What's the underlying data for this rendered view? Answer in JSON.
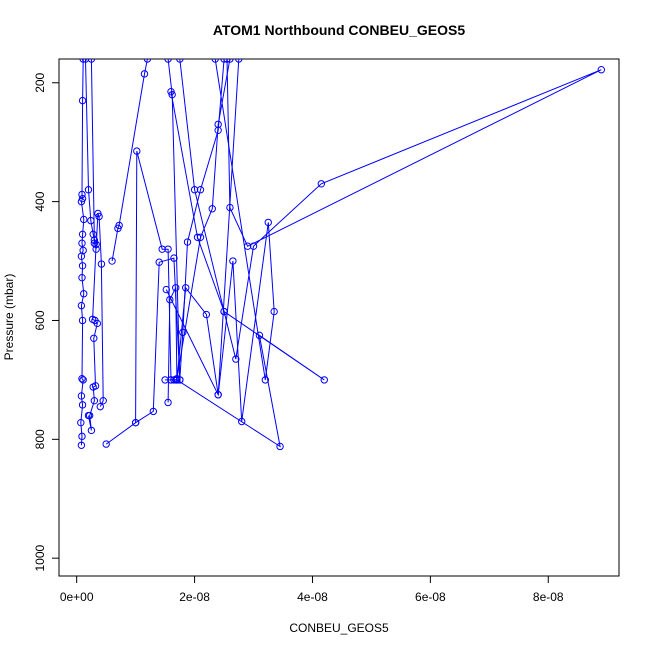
{
  "chart_data": {
    "type": "line",
    "title": "ATOM1 Northbound CONBEU_GEOS5",
    "xlabel": "CONBEU_GEOS5",
    "ylabel": "Pressure (mbar)",
    "x_ticks": [
      {
        "value": 0,
        "label": "0e+00"
      },
      {
        "value": 2e-08,
        "label": "2e-08"
      },
      {
        "value": 4e-08,
        "label": "4e-08"
      },
      {
        "value": 6e-08,
        "label": "6e-08"
      },
      {
        "value": 8e-08,
        "label": "8e-08"
      }
    ],
    "y_ticks": [
      {
        "value": 200,
        "label": "200"
      },
      {
        "value": 400,
        "label": "400"
      },
      {
        "value": 600,
        "label": "600"
      },
      {
        "value": 800,
        "label": "800"
      },
      {
        "value": 1000,
        "label": "1000"
      }
    ],
    "xlim": [
      -3e-09,
      9.2e-08
    ],
    "ylim": [
      1030,
      160
    ],
    "y_inverted": true,
    "color": "#0000ff",
    "marker": "open-circle",
    "grid": false,
    "legend": "none",
    "series": [
      {
        "x": [
          8e-10,
          9e-10,
          7e-10,
          1e-09,
          8e-10,
          1.1e-09,
          9e-10,
          1e-09,
          8e-10,
          1.2e-09,
          9e-10,
          1e-09,
          8e-10,
          1.1e-09,
          9e-10,
          1e-09,
          1.2e-09,
          8e-10,
          1e-09,
          9e-10,
          1e-09,
          1.1e-09
        ],
        "y": [
          810,
          795,
          772,
          742,
          727,
          700,
          698,
          600,
          575,
          555,
          528,
          508,
          492,
          482,
          470,
          455,
          430,
          400,
          395,
          388,
          230,
          160
        ]
      },
      {
        "x": [
          2e-09,
          2.5e-09,
          2.2e-09,
          3e-09,
          2.8e-09,
          3.2e-09,
          2.9e-09,
          3.5e-09,
          3.1e-09,
          2.7e-09,
          3.3e-09,
          3e-09,
          2.8e-09,
          2.4e-09,
          2e-09,
          1.5e-09
        ],
        "y": [
          760,
          785,
          760,
          735,
          712,
          710,
          630,
          605,
          600,
          598,
          472,
          465,
          455,
          432,
          380,
          160
        ]
      },
      {
        "x": [
          4e-09,
          4.5e-09,
          4.2e-09,
          3.8e-09,
          3.6e-09,
          3.3e-09,
          3e-09,
          2.5e-09
        ],
        "y": [
          745,
          735,
          505,
          425,
          420,
          480,
          470,
          160
        ]
      },
      {
        "x": [
          5e-09,
          1e-08,
          1.3e-08,
          1.4e-08,
          1.65e-08,
          1.75e-08,
          1.8e-08,
          1.88e-08,
          2.1e-08,
          2.4e-08,
          2.5e-08
        ],
        "y": [
          808,
          772,
          753,
          502,
          495,
          700,
          620,
          468,
          380,
          280,
          160
        ]
      },
      {
        "x": [
          6e-09,
          7e-09,
          7.2e-09,
          1.15e-08,
          1.2e-08
        ],
        "y": [
          500,
          445,
          440,
          185,
          160
        ]
      },
      {
        "x": [
          1e-08,
          1.02e-08,
          1.45e-08,
          1.55e-08,
          1.6e-08,
          1.7e-08,
          1.75e-08,
          1.62e-08,
          1.55e-08
        ],
        "y": [
          772,
          315,
          480,
          480,
          700,
          700,
          700,
          220,
          160
        ]
      },
      {
        "x": [
          1.5e-08,
          1.6e-08,
          1.65e-08,
          1.68e-08,
          1.7e-08,
          2.1e-08,
          2.3e-08,
          2.4e-08,
          2.6e-08
        ],
        "y": [
          700,
          700,
          700,
          700,
          698,
          460,
          412,
          270,
          160
        ]
      },
      {
        "x": [
          1.55e-08,
          1.58e-08,
          1.68e-08,
          1.7e-08,
          1.85e-08,
          2.2e-08,
          2.4e-08,
          2.75e-08
        ],
        "y": [
          738,
          565,
          545,
          700,
          545,
          590,
          725,
          160
        ]
      },
      {
        "x": [
          1.52e-08,
          2.4e-08,
          2.65e-08,
          2.8e-08,
          3.25e-08,
          3.35e-08,
          3.2e-08,
          2.35e-08
        ],
        "y": [
          548,
          725,
          500,
          770,
          435,
          585,
          700,
          160
        ]
      },
      {
        "x": [
          1.6e-08,
          2.05e-08,
          2.5e-08,
          2.7e-08,
          3e-08,
          4.15e-08,
          8.9e-08,
          2.9e-08,
          2.6e-08,
          2.55e-08
        ],
        "y": [
          215,
          460,
          585,
          665,
          475,
          370,
          178,
          475,
          410,
          160
        ]
      },
      {
        "x": [
          1.7e-08,
          3.45e-08,
          3.1e-08,
          4.2e-08,
          2.5e-08,
          2e-08,
          1.75e-08
        ],
        "y": [
          700,
          812,
          625,
          700,
          585,
          380,
          160
        ]
      }
    ]
  }
}
